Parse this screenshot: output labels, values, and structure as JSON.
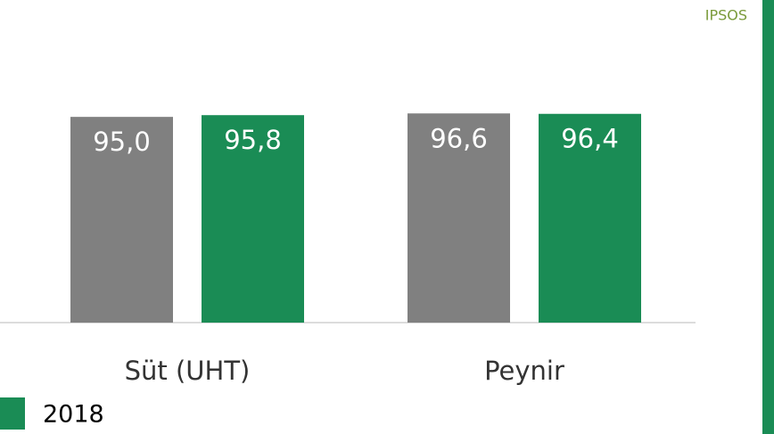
{
  "chart_data": {
    "type": "bar",
    "source": "IPSOS",
    "categories": [
      "Süt (UHT)",
      "Peynir"
    ],
    "series": [
      {
        "color": "#808080",
        "values": [
          95.0,
          96.6
        ],
        "value_labels": [
          "95,0",
          "96,6"
        ]
      },
      {
        "name": "2018",
        "color": "#1a8c55",
        "values": [
          95.8,
          96.4
        ],
        "value_labels": [
          "95,8",
          "96,4"
        ]
      }
    ],
    "ylim": [
      0,
      100
    ]
  }
}
